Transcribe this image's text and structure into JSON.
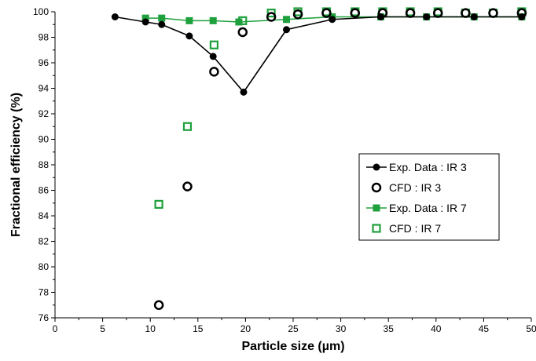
{
  "chart_data": {
    "type": "scatter",
    "title": "",
    "xlabel": "Particle size (µm)",
    "ylabel": "Fractional efficiency (%)",
    "xlim": [
      0,
      50
    ],
    "ylim": [
      76,
      100
    ],
    "x_ticks": [
      0,
      5,
      10,
      15,
      20,
      25,
      30,
      35,
      40,
      45,
      50
    ],
    "y_ticks": [
      76,
      78,
      80,
      82,
      84,
      86,
      88,
      90,
      92,
      94,
      96,
      98,
      100
    ],
    "grid": false,
    "legend_position": "right",
    "series": [
      {
        "name": "Exp. Data : IR 3",
        "style": "line-filled-circle",
        "color": "#000000",
        "x": [
          6.3,
          9.5,
          11.2,
          14.1,
          16.6,
          19.8,
          24.3,
          29.1,
          34.2,
          39.0,
          44.0,
          49.0
        ],
        "y": [
          99.6,
          99.2,
          99.0,
          98.1,
          96.5,
          93.7,
          98.6,
          99.4,
          99.6,
          99.6,
          99.6,
          99.6
        ]
      },
      {
        "name": "CFD : IR 3",
        "style": "open-circle",
        "color": "#000000",
        "x": [
          10.9,
          13.9,
          16.7,
          19.7,
          22.7,
          25.5,
          28.5,
          31.5,
          34.4,
          37.3,
          40.2,
          43.1,
          46.0,
          49.0
        ],
        "y": [
          77.0,
          86.3,
          95.3,
          98.4,
          99.6,
          99.8,
          99.9,
          99.9,
          99.9,
          99.9,
          99.9,
          99.9,
          99.9,
          99.9
        ]
      },
      {
        "name": "Exp. Data : IR 7",
        "style": "line-filled-square",
        "color": "#1ea03c",
        "x": [
          9.5,
          11.2,
          14.1,
          16.6,
          19.3,
          24.3,
          29.1,
          34.2,
          39.0,
          44.0,
          49.0
        ],
        "y": [
          99.5,
          99.5,
          99.3,
          99.3,
          99.2,
          99.4,
          99.6,
          99.6,
          99.6,
          99.6,
          99.6
        ]
      },
      {
        "name": "CFD : IR 7",
        "style": "open-square",
        "color": "#1ea03c",
        "x": [
          10.9,
          13.9,
          16.7,
          19.7,
          22.7,
          25.5,
          28.5,
          31.5,
          34.4,
          37.3,
          40.2,
          43.1,
          46.0,
          49.0
        ],
        "y": [
          84.9,
          91.0,
          97.4,
          99.3,
          99.9,
          100.0,
          100.0,
          100.0,
          100.0,
          100.0,
          100.0,
          99.9,
          99.9,
          100.0
        ]
      }
    ]
  }
}
